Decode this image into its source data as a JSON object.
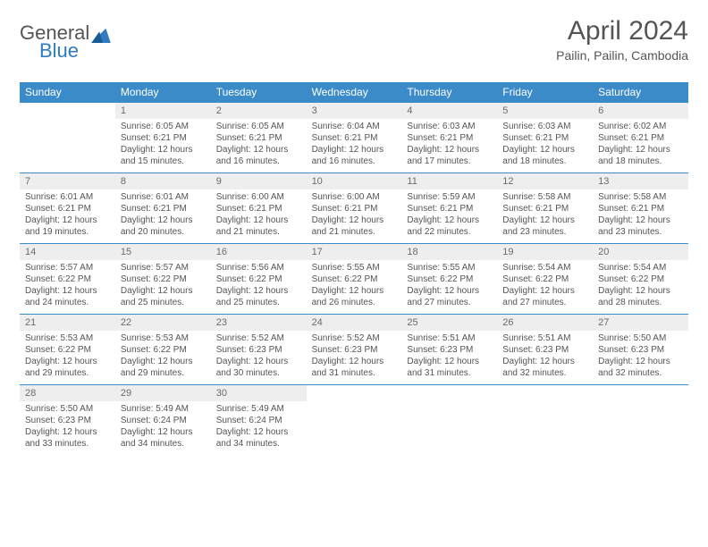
{
  "logo": {
    "general": "General",
    "blue": "Blue"
  },
  "title": "April 2024",
  "location": "Pailin, Pailin, Cambodia",
  "colors": {
    "header_bg": "#3b8bc9",
    "header_text": "#ffffff",
    "daynum_bg": "#eeeeee",
    "body_text": "#555555",
    "border": "#3b8bc9"
  },
  "day_names": [
    "Sunday",
    "Monday",
    "Tuesday",
    "Wednesday",
    "Thursday",
    "Friday",
    "Saturday"
  ],
  "days": {
    "1": {
      "sunrise": "6:05 AM",
      "sunset": "6:21 PM",
      "daylight": "12 hours and 15 minutes."
    },
    "2": {
      "sunrise": "6:05 AM",
      "sunset": "6:21 PM",
      "daylight": "12 hours and 16 minutes."
    },
    "3": {
      "sunrise": "6:04 AM",
      "sunset": "6:21 PM",
      "daylight": "12 hours and 16 minutes."
    },
    "4": {
      "sunrise": "6:03 AM",
      "sunset": "6:21 PM",
      "daylight": "12 hours and 17 minutes."
    },
    "5": {
      "sunrise": "6:03 AM",
      "sunset": "6:21 PM",
      "daylight": "12 hours and 18 minutes."
    },
    "6": {
      "sunrise": "6:02 AM",
      "sunset": "6:21 PM",
      "daylight": "12 hours and 18 minutes."
    },
    "7": {
      "sunrise": "6:01 AM",
      "sunset": "6:21 PM",
      "daylight": "12 hours and 19 minutes."
    },
    "8": {
      "sunrise": "6:01 AM",
      "sunset": "6:21 PM",
      "daylight": "12 hours and 20 minutes."
    },
    "9": {
      "sunrise": "6:00 AM",
      "sunset": "6:21 PM",
      "daylight": "12 hours and 21 minutes."
    },
    "10": {
      "sunrise": "6:00 AM",
      "sunset": "6:21 PM",
      "daylight": "12 hours and 21 minutes."
    },
    "11": {
      "sunrise": "5:59 AM",
      "sunset": "6:21 PM",
      "daylight": "12 hours and 22 minutes."
    },
    "12": {
      "sunrise": "5:58 AM",
      "sunset": "6:21 PM",
      "daylight": "12 hours and 23 minutes."
    },
    "13": {
      "sunrise": "5:58 AM",
      "sunset": "6:21 PM",
      "daylight": "12 hours and 23 minutes."
    },
    "14": {
      "sunrise": "5:57 AM",
      "sunset": "6:22 PM",
      "daylight": "12 hours and 24 minutes."
    },
    "15": {
      "sunrise": "5:57 AM",
      "sunset": "6:22 PM",
      "daylight": "12 hours and 25 minutes."
    },
    "16": {
      "sunrise": "5:56 AM",
      "sunset": "6:22 PM",
      "daylight": "12 hours and 25 minutes."
    },
    "17": {
      "sunrise": "5:55 AM",
      "sunset": "6:22 PM",
      "daylight": "12 hours and 26 minutes."
    },
    "18": {
      "sunrise": "5:55 AM",
      "sunset": "6:22 PM",
      "daylight": "12 hours and 27 minutes."
    },
    "19": {
      "sunrise": "5:54 AM",
      "sunset": "6:22 PM",
      "daylight": "12 hours and 27 minutes."
    },
    "20": {
      "sunrise": "5:54 AM",
      "sunset": "6:22 PM",
      "daylight": "12 hours and 28 minutes."
    },
    "21": {
      "sunrise": "5:53 AM",
      "sunset": "6:22 PM",
      "daylight": "12 hours and 29 minutes."
    },
    "22": {
      "sunrise": "5:53 AM",
      "sunset": "6:22 PM",
      "daylight": "12 hours and 29 minutes."
    },
    "23": {
      "sunrise": "5:52 AM",
      "sunset": "6:23 PM",
      "daylight": "12 hours and 30 minutes."
    },
    "24": {
      "sunrise": "5:52 AM",
      "sunset": "6:23 PM",
      "daylight": "12 hours and 31 minutes."
    },
    "25": {
      "sunrise": "5:51 AM",
      "sunset": "6:23 PM",
      "daylight": "12 hours and 31 minutes."
    },
    "26": {
      "sunrise": "5:51 AM",
      "sunset": "6:23 PM",
      "daylight": "12 hours and 32 minutes."
    },
    "27": {
      "sunrise": "5:50 AM",
      "sunset": "6:23 PM",
      "daylight": "12 hours and 32 minutes."
    },
    "28": {
      "sunrise": "5:50 AM",
      "sunset": "6:23 PM",
      "daylight": "12 hours and 33 minutes."
    },
    "29": {
      "sunrise": "5:49 AM",
      "sunset": "6:24 PM",
      "daylight": "12 hours and 34 minutes."
    },
    "30": {
      "sunrise": "5:49 AM",
      "sunset": "6:24 PM",
      "daylight": "12 hours and 34 minutes."
    }
  },
  "grid": [
    [
      "",
      "1",
      "2",
      "3",
      "4",
      "5",
      "6"
    ],
    [
      "7",
      "8",
      "9",
      "10",
      "11",
      "12",
      "13"
    ],
    [
      "14",
      "15",
      "16",
      "17",
      "18",
      "19",
      "20"
    ],
    [
      "21",
      "22",
      "23",
      "24",
      "25",
      "26",
      "27"
    ],
    [
      "28",
      "29",
      "30",
      "",
      "",
      "",
      ""
    ]
  ],
  "labels": {
    "sunrise": "Sunrise:",
    "sunset": "Sunset:",
    "daylight": "Daylight:"
  }
}
